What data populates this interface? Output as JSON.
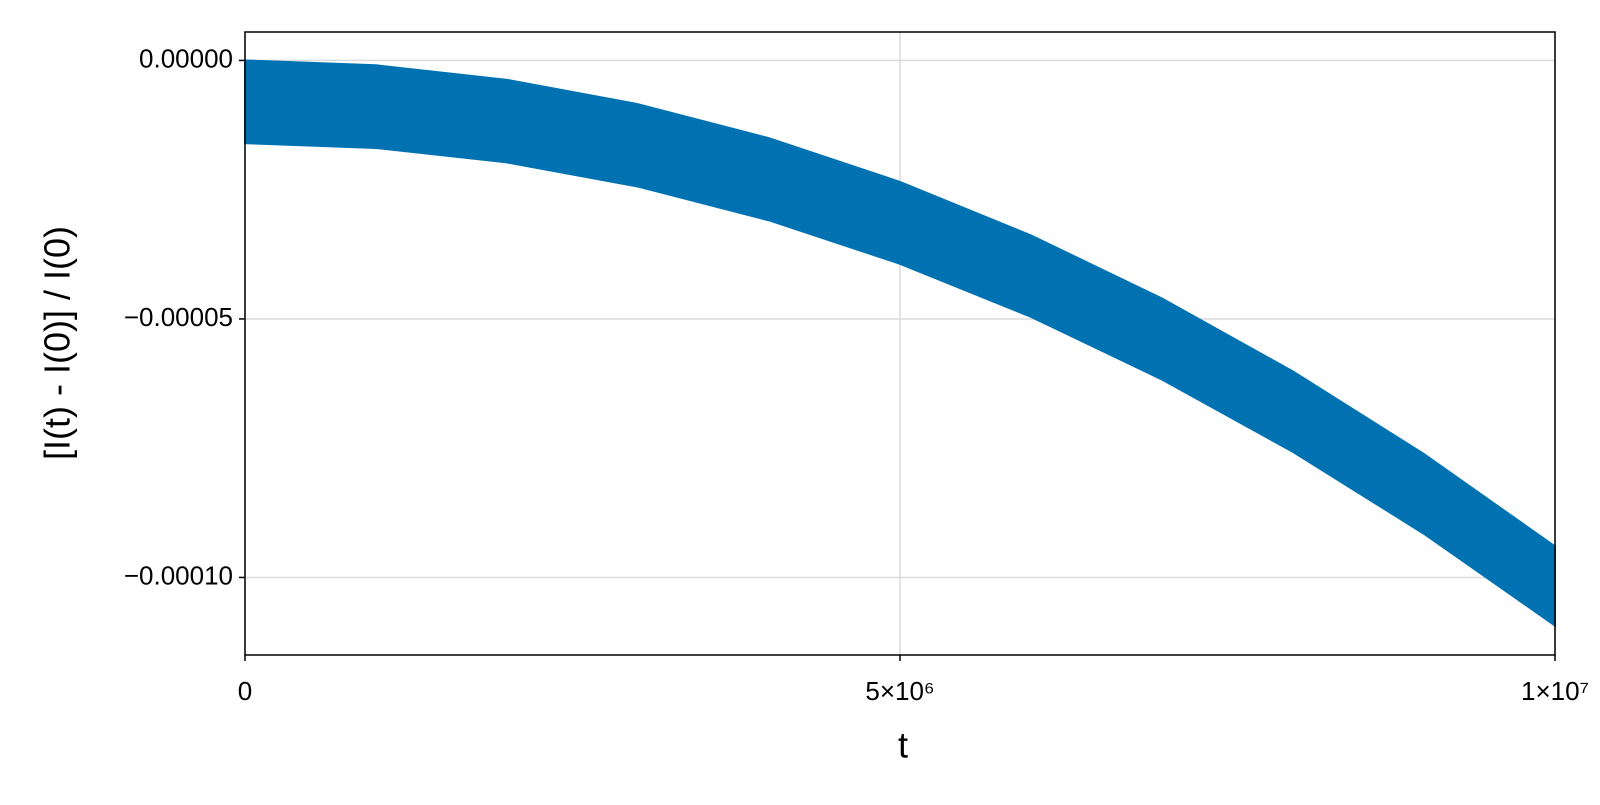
{
  "chart_data": {
    "type": "band",
    "x_label": "t",
    "y_label": "[I(t) - I(0)] / I(0)",
    "color": "#0072b2",
    "grid": true,
    "x": [
      0,
      1000000,
      2000000,
      3000000,
      4000000,
      5000000,
      6000000,
      7000000,
      8000000,
      9000000,
      10000000
    ],
    "upper": [
      0,
      -9.4e-07,
      -3.76e-06,
      -8.46e-06,
      -1.504e-05,
      -2.35e-05,
      -3.384e-05,
      -4.606e-05,
      -6.016e-05,
      -7.614e-05,
      -9.4e-05
    ],
    "lower": [
      -1.6e-05,
      -1.693e-05,
      -1.973e-05,
      -2.44e-05,
      -3.093e-05,
      -3.933e-05,
      -4.959e-05,
      -6.172e-05,
      -7.571e-05,
      -9.157e-05,
      -0.0001093
    ],
    "xlim": [
      0,
      10000000
    ],
    "ylim": [
      -0.000115,
      5.5e-06
    ],
    "xticks": [
      0,
      {
        "value": 5000000,
        "label": "5×10⁶"
      },
      {
        "value": 10000000,
        "label": "1×10⁷"
      }
    ],
    "yticks": [
      {
        "value": 0,
        "label": "0.00000"
      },
      {
        "value": -5e-05,
        "label": "−0.00005"
      },
      {
        "value": -0.0001,
        "label": "−0.00010"
      }
    ]
  }
}
